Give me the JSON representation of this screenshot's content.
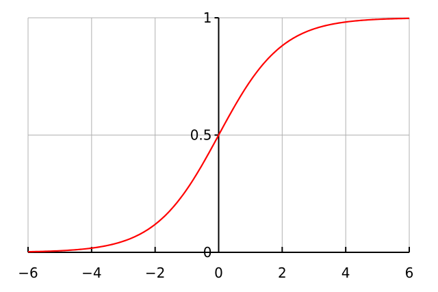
{
  "chart_data": {
    "type": "line",
    "title": "",
    "xlabel": "",
    "ylabel": "",
    "xlim": [
      -6,
      6
    ],
    "ylim": [
      0,
      1
    ],
    "x_ticks": [
      -6,
      -4,
      -2,
      0,
      2,
      4,
      6
    ],
    "x_tick_labels": [
      "−6",
      "−4",
      "−2",
      "0",
      "2",
      "4",
      "6"
    ],
    "y_ticks": [
      0,
      0.5,
      1
    ],
    "y_tick_labels": [
      "0",
      "0.5",
      "1"
    ],
    "grid": true,
    "line_color": "#ff0000",
    "grid_color": "#b0b0b0",
    "axis_color": "#000000",
    "series": [
      {
        "x": [
          -6,
          -5,
          -4,
          -3,
          -2,
          -1.5,
          -1,
          -0.5,
          0,
          0.5,
          1,
          1.5,
          2,
          3,
          4,
          5,
          6
        ],
        "y": [
          0.0025,
          0.0067,
          0.018,
          0.047,
          0.119,
          0.182,
          0.269,
          0.378,
          0.5,
          0.622,
          0.731,
          0.818,
          0.881,
          0.953,
          0.982,
          0.993,
          0.9975
        ]
      }
    ]
  }
}
